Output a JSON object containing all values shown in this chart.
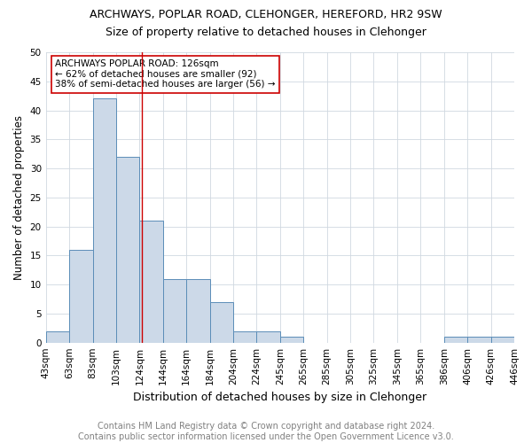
{
  "title": "ARCHWAYS, POPLAR ROAD, CLEHONGER, HEREFORD, HR2 9SW",
  "subtitle": "Size of property relative to detached houses in Clehonger",
  "xlabel": "Distribution of detached houses by size in Clehonger",
  "ylabel": "Number of detached properties",
  "bar_values": [
    2,
    16,
    42,
    32,
    21,
    11,
    11,
    7,
    2,
    2,
    1,
    0,
    0,
    0,
    0,
    0,
    0,
    1,
    1,
    1
  ],
  "x_labels": [
    "43sqm",
    "63sqm",
    "83sqm",
    "103sqm",
    "124sqm",
    "144sqm",
    "164sqm",
    "184sqm",
    "204sqm",
    "224sqm",
    "245sqm",
    "265sqm",
    "285sqm",
    "305sqm",
    "325sqm",
    "345sqm",
    "365sqm",
    "386sqm",
    "406sqm",
    "426sqm",
    "446sqm"
  ],
  "n_bars": 20,
  "property_bin": 4,
  "property_label": "124sqm",
  "bar_color": "#ccd9e8",
  "bar_edge_color": "#5b8db8",
  "vline_color": "#cc0000",
  "ylim": [
    0,
    50
  ],
  "yticks": [
    0,
    5,
    10,
    15,
    20,
    25,
    30,
    35,
    40,
    45,
    50
  ],
  "annotation_title": "ARCHWAYS POPLAR ROAD: 126sqm",
  "annotation_line1": "← 62% of detached houses are smaller (92)",
  "annotation_line2": "38% of semi-detached houses are larger (56) →",
  "annotation_box_color": "#ffffff",
  "annotation_box_edge_color": "#cc0000",
  "footer_line1": "Contains HM Land Registry data © Crown copyright and database right 2024.",
  "footer_line2": "Contains public sector information licensed under the Open Government Licence v3.0.",
  "title_fontsize": 9,
  "subtitle_fontsize": 9,
  "xlabel_fontsize": 9,
  "ylabel_fontsize": 8.5,
  "tick_fontsize": 7.5,
  "footer_fontsize": 7,
  "annotation_fontsize": 7.5
}
